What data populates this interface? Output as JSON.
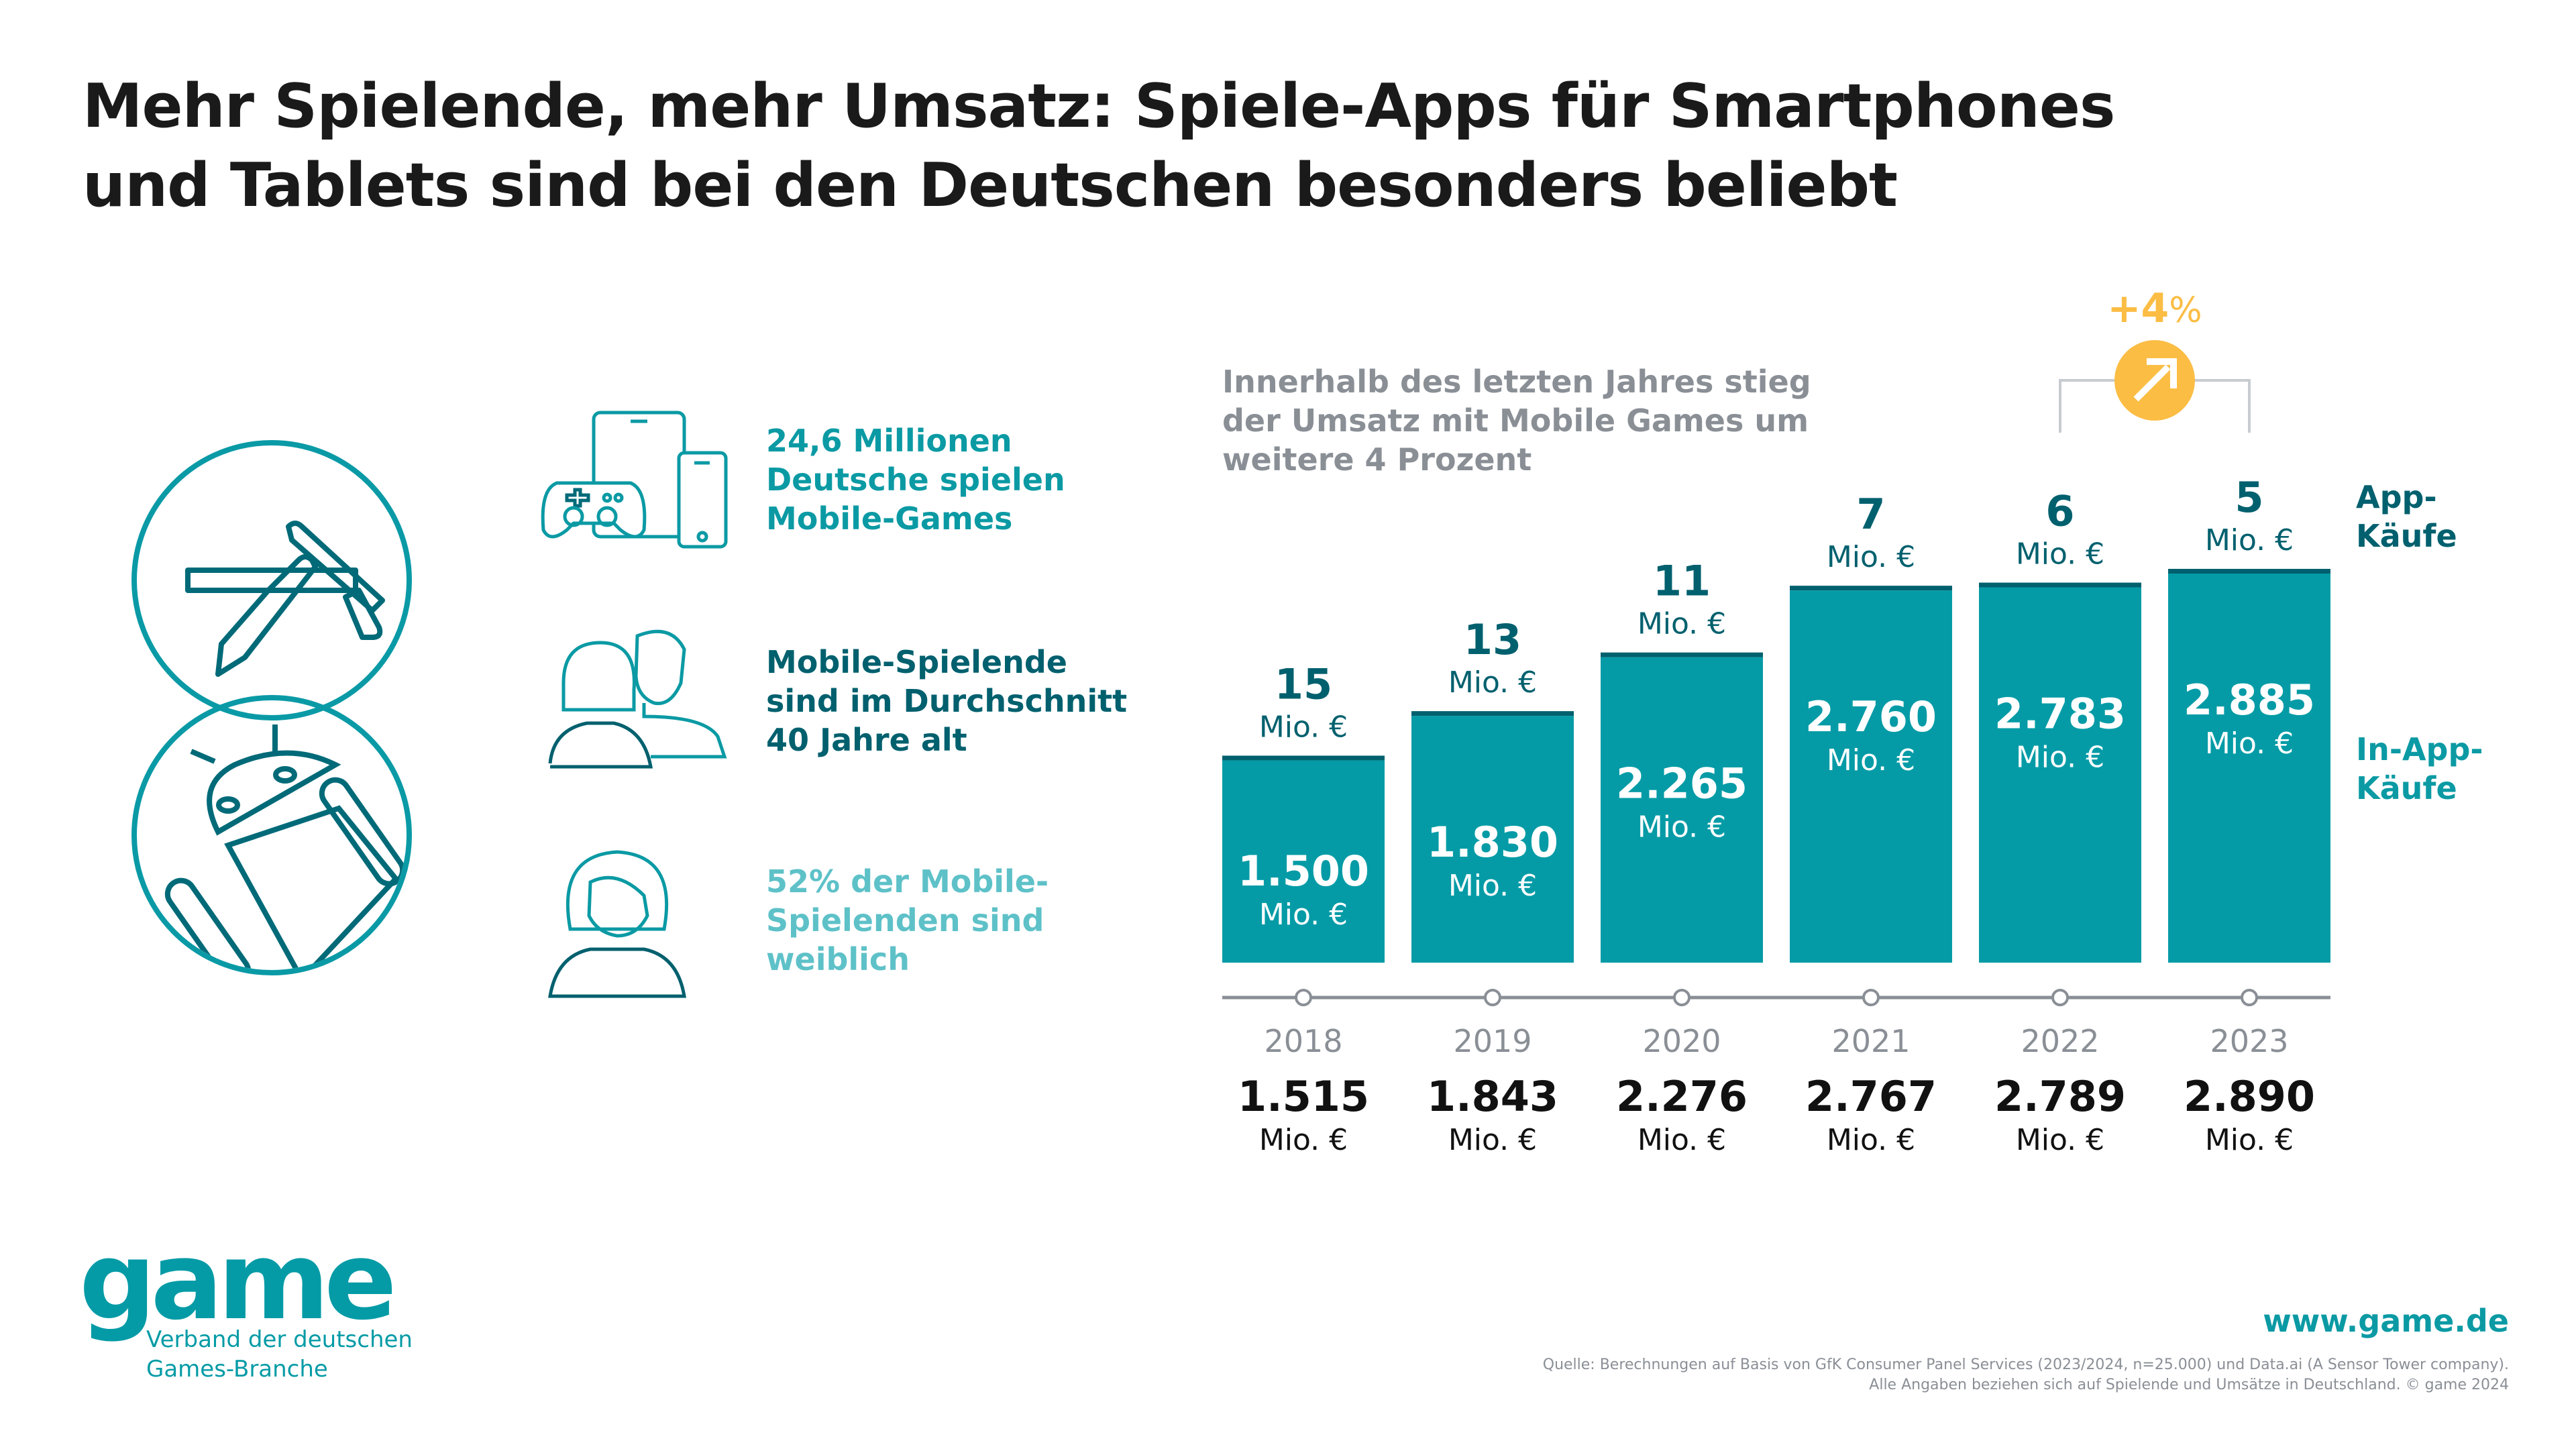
{
  "title_lines": [
    "Mehr Spielende, mehr Umsatz: Spiele-Apps für Smartphones",
    "und Tablets sind bei den Deutschen besonders beliebt"
  ],
  "facts": [
    {
      "lines": [
        "24,6 Millionen",
        "Deutsche spielen",
        "Mobile-Games"
      ],
      "icon": "devices-controller-icon"
    },
    {
      "lines": [
        "Mobile-Spielende",
        "sind im Durchschnitt",
        "40 Jahre alt"
      ],
      "icon": "couple-icon"
    },
    {
      "lines": [
        "52% der Mobile-",
        "Spielenden sind",
        "weiblich"
      ],
      "icon": "woman-icon"
    }
  ],
  "store_icons": [
    "app-store-icon",
    "android-icon"
  ],
  "badge": {
    "value": "+4",
    "unit": "%",
    "icon": "arrow-up-right-icon"
  },
  "colors": {
    "teal": "#049ba6",
    "dark_teal": "#00606e",
    "light_teal": "#5ec1c8",
    "yellow": "#fbbd44",
    "gray": "#8a8f96"
  },
  "legend": {
    "app": [
      "App-",
      "Käufe"
    ],
    "inapp": [
      "In-App-",
      "Käufe"
    ]
  },
  "unit": "Mio. €",
  "chart_data": {
    "type": "bar",
    "stacked": true,
    "title": "Innerhalb des letzten Jahres stieg der Umsatz mit Mobile Games um weitere 4 Prozent",
    "subtitle_lines": [
      "Innerhalb des letzten Jahres stieg",
      "der Umsatz mit Mobile Games um",
      "weitere 4 Prozent"
    ],
    "categories": [
      "2018",
      "2019",
      "2020",
      "2021",
      "2022",
      "2023"
    ],
    "series": [
      {
        "name": "In-App-Käufe",
        "values": [
          1500,
          1830,
          2265,
          2760,
          2783,
          2885
        ],
        "labels": [
          "1.500",
          "1.830",
          "2.265",
          "2.760",
          "2.783",
          "2.885"
        ],
        "color": "#049ba6"
      },
      {
        "name": "App-Käufe",
        "values": [
          15,
          13,
          11,
          7,
          6,
          5
        ],
        "labels": [
          "15",
          "13",
          "11",
          "7",
          "6",
          "5"
        ],
        "color": "#00606e"
      }
    ],
    "totals": [
      1515,
      1843,
      2276,
      2767,
      2789,
      2890
    ],
    "total_labels": [
      "1.515",
      "1.843",
      "2.276",
      "2.767",
      "2.789",
      "2.890"
    ],
    "unit": "Mio. €",
    "annotation": "+4%",
    "ylim": [
      0,
      2890
    ],
    "grid": false,
    "legend_position": "right"
  },
  "footer": {
    "logo": "game",
    "logo_sub": [
      "Verband der deutschen",
      "Games-Branche"
    ],
    "website": "www.game.de",
    "source_lines": [
      "Quelle: Berechnungen auf Basis von GfK Consumer Panel Services (2023/2024, n=25.000) und Data.ai (A Sensor Tower company).",
      "Alle Angaben beziehen sich auf Spielende und Umsätze in Deutschland. © game 2024"
    ]
  }
}
